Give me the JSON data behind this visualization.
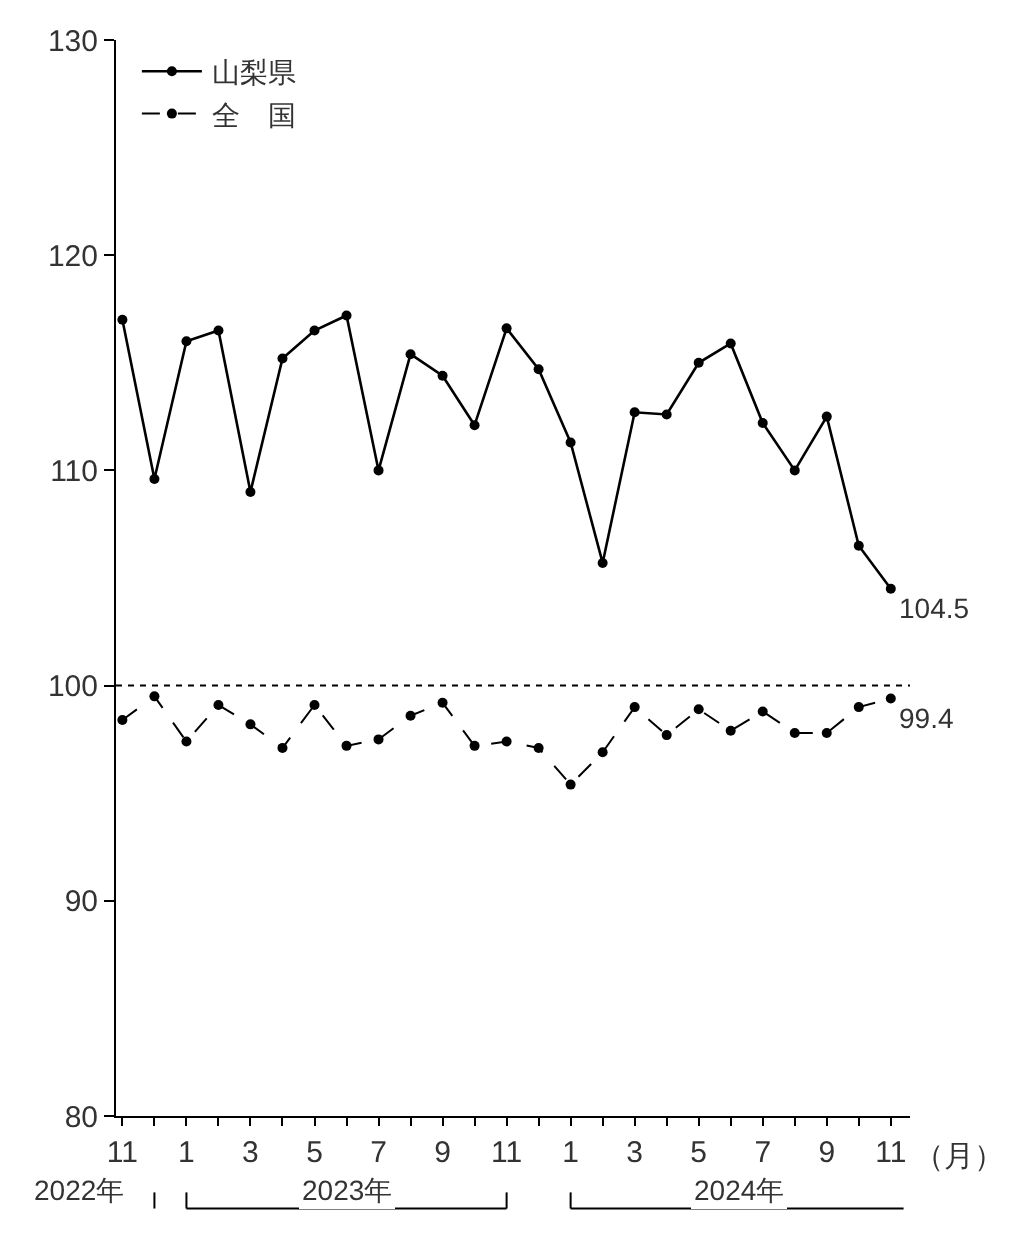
{
  "chart_data": {
    "type": "line",
    "categories": [
      "11",
      null,
      "1",
      null,
      "3",
      null,
      "5",
      null,
      "7",
      null,
      "9",
      null,
      "11",
      null,
      "1",
      null,
      "3",
      null,
      "5",
      null,
      "7",
      null,
      "9",
      null,
      "11"
    ],
    "xlabel": "（月）",
    "series": [
      {
        "name": "山梨県",
        "color": "#000000",
        "line_style": "solid",
        "values": [
          117.0,
          109.6,
          116.0,
          116.5,
          109.0,
          115.2,
          116.5,
          117.2,
          110.0,
          115.4,
          114.4,
          112.1,
          116.6,
          114.7,
          111.3,
          105.7,
          112.7,
          112.6,
          115.0,
          115.9,
          112.2,
          110.0,
          112.5,
          106.5,
          104.5
        ],
        "value_labels": [
          null,
          null,
          null,
          null,
          null,
          null,
          null,
          null,
          null,
          null,
          null,
          null,
          null,
          null,
          null,
          null,
          null,
          null,
          null,
          null,
          null,
          null,
          null,
          null,
          "104.5"
        ]
      },
      {
        "name": "全　国",
        "color": "#000000",
        "line_style": "dashed",
        "values": [
          98.4,
          99.5,
          97.4,
          99.1,
          98.2,
          97.1,
          99.1,
          97.2,
          97.5,
          98.6,
          99.2,
          97.2,
          97.4,
          97.1,
          95.4,
          96.9,
          99.0,
          97.7,
          98.9,
          97.9,
          98.8,
          97.8,
          97.8,
          99.0,
          99.4
        ],
        "value_labels": [
          null,
          null,
          null,
          null,
          null,
          null,
          null,
          null,
          null,
          null,
          null,
          null,
          null,
          null,
          null,
          null,
          null,
          null,
          null,
          null,
          null,
          null,
          null,
          null,
          "99.4"
        ]
      }
    ],
    "ylim": [
      80,
      130
    ],
    "yticks": [
      80,
      90,
      100,
      110,
      120,
      130
    ],
    "ref_lines": [
      {
        "axis": "y",
        "value": 100,
        "line_style": "dotted",
        "color": "#000000"
      }
    ],
    "annotations": [
      "2022年",
      "2023年",
      "2024年"
    ],
    "marker": "circle",
    "legend": "top left"
  }
}
